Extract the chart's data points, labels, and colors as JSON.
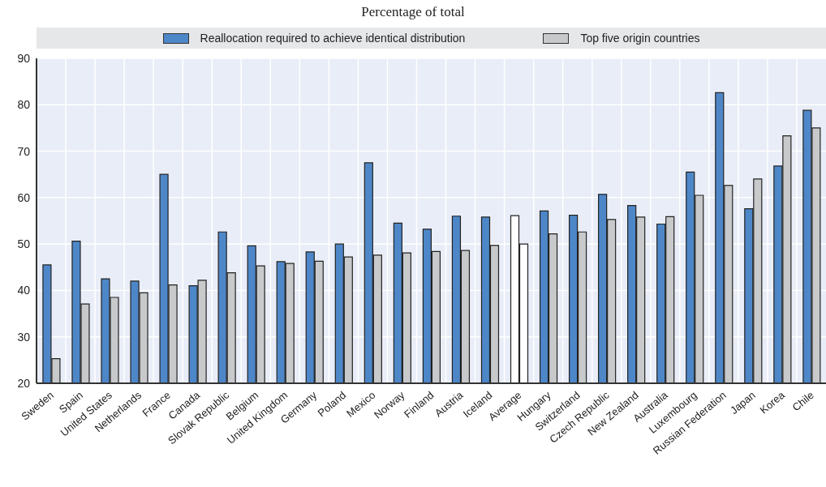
{
  "chart_data": {
    "type": "bar",
    "title": "Percentage of total",
    "categories": [
      "Sweden",
      "Spain",
      "United States",
      "Netherlands",
      "France",
      "Canada",
      "Slovak Republic",
      "Belgium",
      "United Kingdom",
      "Germany",
      "Poland",
      "Mexico",
      "Norway",
      "Finland",
      "Austria",
      "Iceland",
      "Average",
      "Hungary",
      "Switzerland",
      "Czech Republic",
      "New Zealand",
      "Australia",
      "Luxembourg",
      "Russian Federation",
      "Japan",
      "Korea",
      "Chile"
    ],
    "series": [
      {
        "name": "Reallocation required to achieve identical distribution",
        "color": "#4e87c8",
        "colors": [
          "#4e87c8",
          "#4e87c8",
          "#4e87c8",
          "#4e87c8",
          "#4e87c8",
          "#4e87c8",
          "#4e87c8",
          "#4e87c8",
          "#4e87c8",
          "#4e87c8",
          "#4e87c8",
          "#4e87c8",
          "#4e87c8",
          "#4e87c8",
          "#4e87c8",
          "#4e87c8",
          "#ffffff",
          "#4e87c8",
          "#4e87c8",
          "#4e87c8",
          "#4e87c8",
          "#4e87c8",
          "#4e87c8",
          "#4e87c8",
          "#4e87c8",
          "#4e87c8",
          "#4e87c8"
        ],
        "values": [
          45.5,
          50.6,
          42.5,
          42,
          65,
          41,
          52.6,
          49.6,
          46.2,
          48.3,
          50,
          67.5,
          54.5,
          53.2,
          56,
          55.8,
          56.1,
          57.1,
          56.2,
          60.7,
          58.3,
          54.3,
          65.5,
          82.6,
          57.6,
          66.8,
          78.8
        ]
      },
      {
        "name": "Top five origin countries",
        "color": "#c8c9cb",
        "colors": [
          "#c8c9cb",
          "#c8c9cb",
          "#c8c9cb",
          "#c8c9cb",
          "#c8c9cb",
          "#c8c9cb",
          "#c8c9cb",
          "#c8c9cb",
          "#c8c9cb",
          "#c8c9cb",
          "#c8c9cb",
          "#c8c9cb",
          "#c8c9cb",
          "#c8c9cb",
          "#c8c9cb",
          "#c8c9cb",
          "#ffffff",
          "#c8c9cb",
          "#c8c9cb",
          "#c8c9cb",
          "#c8c9cb",
          "#c8c9cb",
          "#c8c9cb",
          "#c8c9cb",
          "#c8c9cb",
          "#c8c9cb",
          "#c8c9cb"
        ],
        "values": [
          25.3,
          37.1,
          38.5,
          39.5,
          41.2,
          42.2,
          43.8,
          45.3,
          45.8,
          46.3,
          47.2,
          47.6,
          48.1,
          48.4,
          48.6,
          49.7,
          50,
          52.2,
          52.6,
          55.3,
          55.8,
          55.9,
          60.5,
          62.6,
          64,
          73.3,
          75
        ]
      }
    ],
    "ylim": [
      20,
      90
    ],
    "yticks": [
      20,
      30,
      40,
      50,
      60,
      70,
      80,
      90
    ],
    "grid": true,
    "legend": "top"
  }
}
